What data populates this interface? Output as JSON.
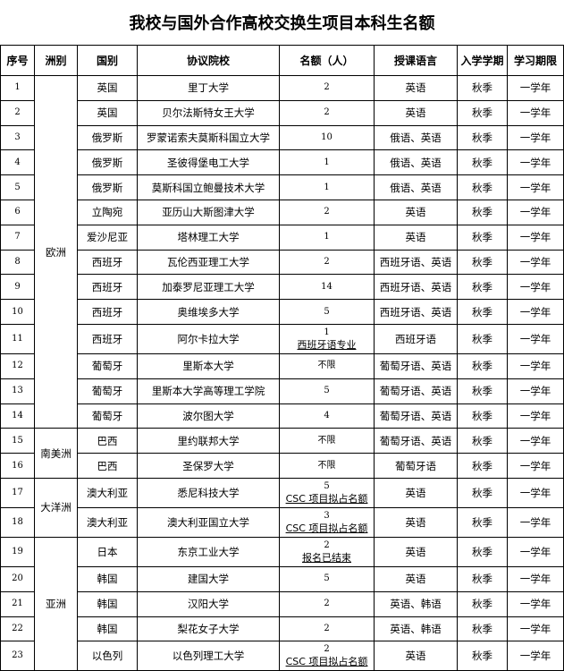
{
  "title": "我校与国外合作高校交换生项目本科生名额",
  "headers": [
    "序号",
    "洲别",
    "国别",
    "协议院校",
    "名额（人）",
    "授课语言",
    "入学学期",
    "学习期限"
  ],
  "continents": [
    {
      "name": "欧洲",
      "rows": 14
    },
    {
      "name": "南美洲",
      "rows": 2
    },
    {
      "name": "大洋洲",
      "rows": 2
    },
    {
      "name": "亚洲",
      "rows": 5
    }
  ],
  "rows": [
    {
      "no": "1",
      "country": "英国",
      "school": "里丁大学",
      "quota": "2",
      "note": "",
      "language": "英语",
      "term": "秋季",
      "duration": "一学年"
    },
    {
      "no": "2",
      "country": "英国",
      "school": "贝尔法斯特女王大学",
      "quota": "2",
      "note": "",
      "language": "英语",
      "term": "秋季",
      "duration": "一学年"
    },
    {
      "no": "3",
      "country": "俄罗斯",
      "school": "罗蒙诺索夫莫斯科国立大学",
      "quota": "10",
      "note": "",
      "language": "俄语、英语",
      "term": "秋季",
      "duration": "一学年"
    },
    {
      "no": "4",
      "country": "俄罗斯",
      "school": "圣彼得堡电工大学",
      "quota": "1",
      "note": "",
      "language": "俄语、英语",
      "term": "秋季",
      "duration": "一学年"
    },
    {
      "no": "5",
      "country": "俄罗斯",
      "school": "莫斯科国立鲍曼技术大学",
      "quota": "1",
      "note": "",
      "language": "俄语、英语",
      "term": "秋季",
      "duration": "一学年"
    },
    {
      "no": "6",
      "country": "立陶宛",
      "school": "亚历山大斯图津大学",
      "quota": "2",
      "note": "",
      "language": "英语",
      "term": "秋季",
      "duration": "一学年"
    },
    {
      "no": "7",
      "country": "爱沙尼亚",
      "school": "塔林理工大学",
      "quota": "1",
      "note": "",
      "language": "英语",
      "term": "秋季",
      "duration": "一学年"
    },
    {
      "no": "8",
      "country": "西班牙",
      "school": "瓦伦西亚理工大学",
      "quota": "2",
      "note": "",
      "language": "西班牙语、英语",
      "term": "秋季",
      "duration": "一学年"
    },
    {
      "no": "9",
      "country": "西班牙",
      "school": "加泰罗尼亚理工大学",
      "quota": "14",
      "note": "",
      "language": "西班牙语、英语",
      "term": "秋季",
      "duration": "一学年"
    },
    {
      "no": "10",
      "country": "西班牙",
      "school": "奥维埃多大学",
      "quota": "5",
      "note": "",
      "language": "西班牙语、英语",
      "term": "秋季",
      "duration": "一学年"
    },
    {
      "no": "11",
      "country": "西班牙",
      "school": "阿尔卡拉大学",
      "quota": "1",
      "note": "西班牙语专业",
      "language": "西班牙语",
      "term": "秋季",
      "duration": "一学年"
    },
    {
      "no": "12",
      "country": "葡萄牙",
      "school": "里斯本大学",
      "quota": "不限",
      "note": "",
      "language": "葡萄牙语、英语",
      "term": "秋季",
      "duration": "一学年"
    },
    {
      "no": "13",
      "country": "葡萄牙",
      "school": "里斯本大学高等理工学院",
      "quota": "5",
      "note": "",
      "language": "葡萄牙语、英语",
      "term": "秋季",
      "duration": "一学年"
    },
    {
      "no": "14",
      "country": "葡萄牙",
      "school": "波尔图大学",
      "quota": "4",
      "note": "",
      "language": "葡萄牙语、英语",
      "term": "秋季",
      "duration": "一学年"
    },
    {
      "no": "15",
      "country": "巴西",
      "school": "里约联邦大学",
      "quota": "不限",
      "note": "",
      "language": "葡萄牙语、英语",
      "term": "秋季",
      "duration": "一学年"
    },
    {
      "no": "16",
      "country": "巴西",
      "school": "圣保罗大学",
      "quota": "不限",
      "note": "",
      "language": "葡萄牙语",
      "term": "秋季",
      "duration": "一学年"
    },
    {
      "no": "17",
      "country": "澳大利亚",
      "school": "悉尼科技大学",
      "quota": "5",
      "note": "CSC 项目拟占名额",
      "language": "英语",
      "term": "秋季",
      "duration": "一学年"
    },
    {
      "no": "18",
      "country": "澳大利亚",
      "school": "澳大利亚国立大学",
      "quota": "3",
      "note": "CSC 项目拟占名额",
      "language": "英语",
      "term": "秋季",
      "duration": "一学年"
    },
    {
      "no": "19",
      "country": "日本",
      "school": "东京工业大学",
      "quota": "2",
      "note": "报名已结束",
      "language": "英语",
      "term": "秋季",
      "duration": "一学年"
    },
    {
      "no": "20",
      "country": "韩国",
      "school": "建国大学",
      "quota": "5",
      "note": "",
      "language": "英语",
      "term": "秋季",
      "duration": "一学年"
    },
    {
      "no": "21",
      "country": "韩国",
      "school": "汉阳大学",
      "quota": "2",
      "note": "",
      "language": "英语、韩语",
      "term": "秋季",
      "duration": "一学年"
    },
    {
      "no": "22",
      "country": "韩国",
      "school": "梨花女子大学",
      "quota": "2",
      "note": "",
      "language": "英语、韩语",
      "term": "秋季",
      "duration": "一学年"
    },
    {
      "no": "23",
      "country": "以色列",
      "school": "以色列理工大学",
      "quota": "2",
      "note": "CSC 项目拟占名额",
      "language": "英语",
      "term": "秋季",
      "duration": "一学年"
    }
  ]
}
